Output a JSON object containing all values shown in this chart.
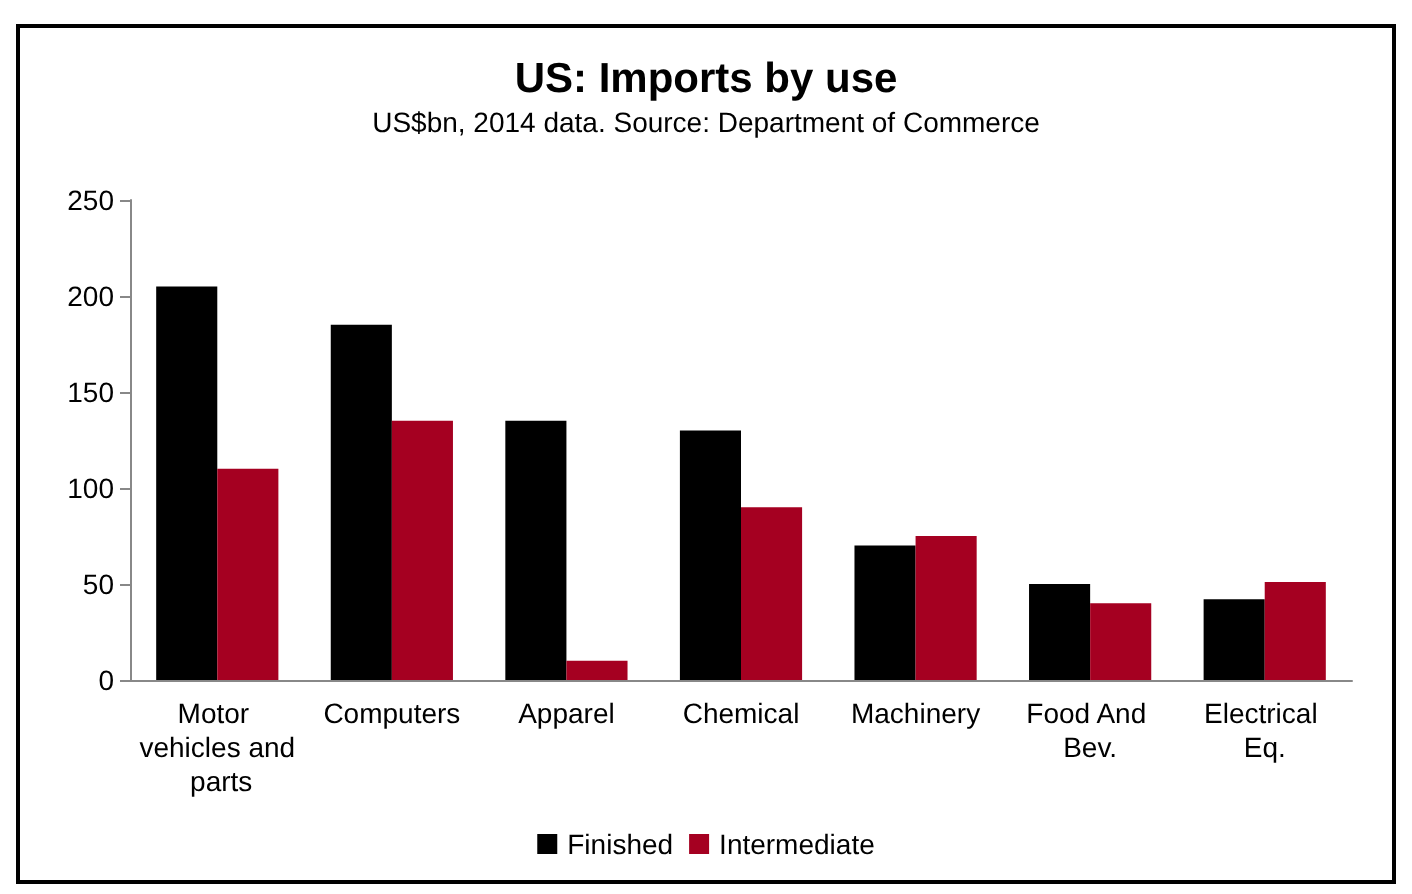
{
  "chart_data": {
    "type": "bar",
    "title": "US: Imports by use",
    "subtitle": "US$bn, 2014 data. Source: Department of Commerce",
    "categories": [
      "Motor vehicles and parts",
      "Computers",
      "Apparel",
      "Chemical",
      "Machinery",
      "Food And Bev.",
      "Electrical Eq."
    ],
    "series": [
      {
        "name": "Finished",
        "color": "#000000",
        "values": [
          205,
          185,
          135,
          130,
          70,
          50,
          42
        ]
      },
      {
        "name": "Intermediate",
        "color": "#a50021",
        "values": [
          110,
          135,
          10,
          90,
          75,
          40,
          51
        ]
      }
    ],
    "ylim": [
      0,
      250
    ],
    "yticks": [
      0,
      50,
      100,
      150,
      200,
      250
    ],
    "grid": false,
    "legend": "bottom"
  }
}
